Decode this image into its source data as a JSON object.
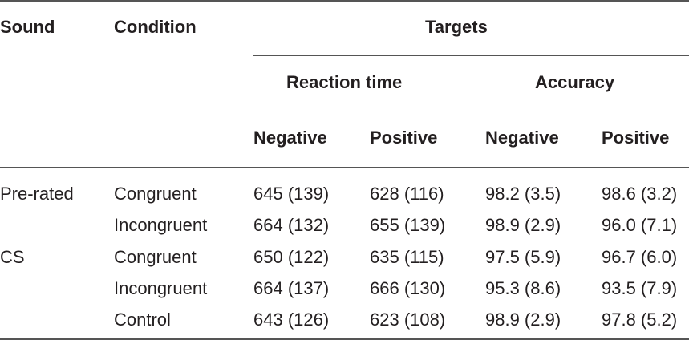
{
  "table": {
    "headers": {
      "sound": "Sound",
      "condition": "Condition",
      "targets": "Targets",
      "reaction_time": "Reaction time",
      "accuracy": "Accuracy",
      "rt_negative": "Negative",
      "rt_positive": "Positive",
      "acc_negative": "Negative",
      "acc_positive": "Positive"
    },
    "rows": [
      {
        "sound": "Pre-rated",
        "condition": "Congruent",
        "rt_neg": "645 (139)",
        "rt_pos": "628 (116)",
        "acc_neg": "98.2 (3.5)",
        "acc_pos": "98.6 (3.2)"
      },
      {
        "sound": "",
        "condition": "Incongruent",
        "rt_neg": "664 (132)",
        "rt_pos": "655 (139)",
        "acc_neg": "98.9 (2.9)",
        "acc_pos": "96.0 (7.1)"
      },
      {
        "sound": "CS",
        "condition": "Congruent",
        "rt_neg": "650 (122)",
        "rt_pos": "635 (115)",
        "acc_neg": "97.5 (5.9)",
        "acc_pos": "96.7 (6.0)"
      },
      {
        "sound": "",
        "condition": "Incongruent",
        "rt_neg": "664 (137)",
        "rt_pos": "666 (130)",
        "acc_neg": "95.3 (8.6)",
        "acc_pos": "93.5 (7.9)"
      },
      {
        "sound": "",
        "condition": "Control",
        "rt_neg": "643 (126)",
        "rt_pos": "623 (108)",
        "acc_neg": "98.9 (2.9)",
        "acc_pos": "97.8 (5.2)"
      }
    ]
  }
}
